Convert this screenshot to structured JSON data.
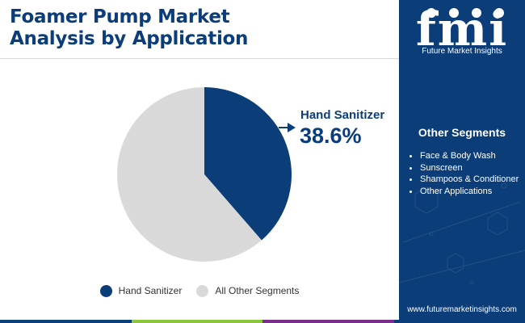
{
  "header": {
    "title_line1": "Foamer Pump Market",
    "title_line2": "Analysis by Application"
  },
  "brand": {
    "logo_text": "fmi",
    "tagline": "Future Market Insights",
    "url": "www.futuremarketinsights.com"
  },
  "sidebar": {
    "heading": "Other Segments",
    "items": [
      "Face & Body Wash",
      "Sunscreen",
      "Shampoos & Conditioner",
      "Other Applications"
    ]
  },
  "callout": {
    "label": "Hand Sanitizer",
    "value": "38.6%"
  },
  "colors": {
    "primary": "#0b3d78",
    "secondary": "#d9d9d9",
    "title": "#0a3d7a",
    "bottom_bar": [
      "#0b3d78",
      "#8cc63f",
      "#7b2d8e",
      "#0b3d78"
    ]
  },
  "chart_data": {
    "type": "pie",
    "title": "",
    "slices": [
      {
        "name": "Hand Sanitizer",
        "value": 38.6,
        "color": "#0b3d78"
      },
      {
        "name": "All Other Segments",
        "value": 61.4,
        "color": "#d9d9d9"
      }
    ],
    "start": "12 o'clock",
    "direction": "clockwise",
    "legend_position": "bottom"
  }
}
